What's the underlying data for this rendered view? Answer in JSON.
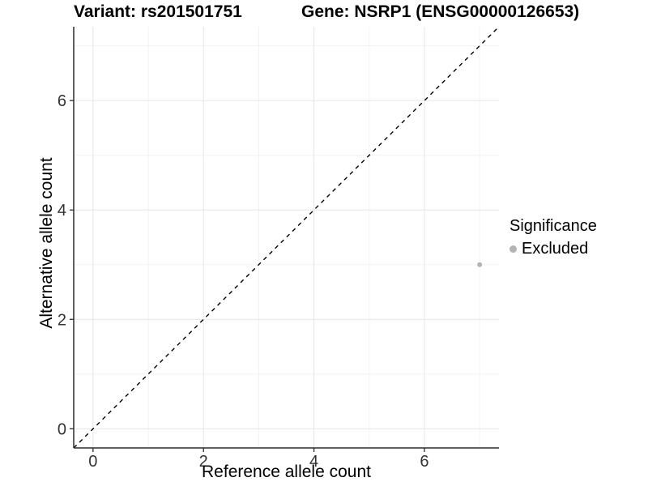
{
  "header": {
    "left_title": "Variant: rs201501751",
    "right_title": "Gene: NSRP1 (ENSG00000126653)"
  },
  "legend": {
    "title": "Significance",
    "items": [
      {
        "label": "Excluded",
        "color": "#b3b3b3"
      }
    ]
  },
  "chart_data": {
    "type": "scatter",
    "title_left": "Variant: rs201501751",
    "title_right": "Gene: NSRP1 (ENSG00000126653)",
    "xlabel": "Reference allele count",
    "ylabel": "Alternative allele count",
    "xlim": [
      -0.35,
      7.35
    ],
    "ylim": [
      -0.35,
      7.35
    ],
    "x_ticks": [
      0,
      2,
      4,
      6
    ],
    "y_ticks": [
      0,
      2,
      4,
      6
    ],
    "x_minor": [
      1,
      3,
      5,
      7
    ],
    "y_minor": [
      1,
      3,
      5,
      7
    ],
    "grid": true,
    "legend_title": "Significance",
    "legend_position": "right",
    "series": [
      {
        "name": "Excluded",
        "color": "#b3b3b3",
        "points": [
          {
            "x": 7,
            "y": 3
          }
        ]
      }
    ],
    "reference_line": {
      "type": "identity",
      "slope": 1,
      "intercept": 0,
      "style": "dashed",
      "color": "#000000"
    },
    "colors": {
      "background": "#ffffff",
      "grid_major": "#e6e6e6",
      "grid_minor": "#f2f2f2",
      "axis_line": "#2b2b2b",
      "tick_label": "#333333"
    }
  }
}
